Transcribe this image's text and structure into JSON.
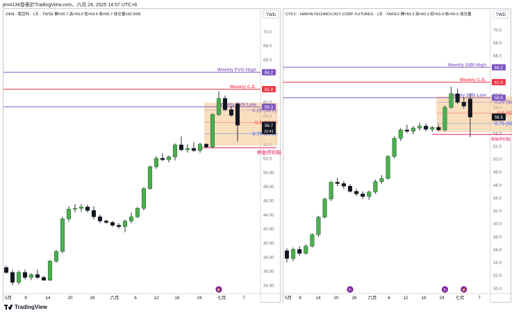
{
  "top_bar": {
    "text": "jen4134發表於TradingView.com，六月 24, 2025 14:57 UTC+8"
  },
  "footer": {
    "brand": "TradingView"
  },
  "charts": [
    {
      "header": "2408 · 南亞科 · 1天 · TWSE  開=59.7  高=59.9  低=54.4  收=56.7  成交量192.56M",
      "currency": "TWD",
      "y_ticks": [
        "70.0",
        "68.0",
        "66.0",
        "64.0",
        "62.0",
        "60.0",
        "58.0",
        "56.0",
        "54.0",
        "52.0",
        "50.00",
        "48.00",
        "46.00",
        "44.00",
        "42.00",
        "40.00",
        "38.00",
        "36.00",
        "34.00"
      ],
      "x_ticks": [
        "5月",
        "9",
        "14",
        "20",
        "26",
        "六月",
        "6",
        "12",
        "18",
        "24",
        "七月",
        "7"
      ],
      "ylim": [
        33.2,
        71.6
      ],
      "lines": [
        {
          "label": "Weekly FVG High",
          "value": 64.2,
          "tag": "64.2",
          "color": "#7e57c2"
        },
        {
          "label": "Weekly C.E.",
          "value": 61.8,
          "tag": "61.8",
          "color": "#f23645"
        },
        {
          "label": "Weekly FVG Low",
          "value": 59.3,
          "tag": "59.3",
          "color": "#7e57c2"
        }
      ],
      "fib": [
        {
          "label": "0.25 (58.8)",
          "value": 58.8,
          "color": "#7e57c2"
        },
        {
          "label": "0.5 (57.1)",
          "value": 57.1,
          "color": "#f23645"
        },
        {
          "label": "0.75 (55.5)",
          "value": 55.5,
          "color": "#2962ff"
        }
      ],
      "stop_label": "移動停利點",
      "stop_value": 53.5,
      "price_tag": "56.7",
      "countdown": "22:41",
      "candles": [
        [
          36.5,
          36.8,
          35.6,
          35.8
        ],
        [
          35.8,
          36.2,
          34.0,
          34.4
        ],
        [
          34.4,
          36.1,
          34.1,
          35.8
        ],
        [
          35.8,
          36.2,
          34.8,
          35.1
        ],
        [
          35.1,
          35.7,
          34.7,
          35.5
        ],
        [
          35.5,
          36.2,
          34.9,
          35.1
        ],
        [
          35.1,
          35.3,
          34.6,
          34.7
        ],
        [
          34.7,
          37.6,
          34.6,
          37.4
        ],
        [
          37.4,
          39.0,
          37.2,
          38.8
        ],
        [
          38.8,
          43.7,
          38.5,
          43.4
        ],
        [
          43.4,
          45.2,
          43.0,
          44.8
        ],
        [
          44.8,
          45.5,
          44.3,
          44.9
        ],
        [
          44.9,
          45.5,
          44.4,
          45.1
        ],
        [
          45.1,
          45.4,
          44.3,
          44.6
        ],
        [
          44.6,
          45.2,
          43.3,
          43.7
        ],
        [
          43.7,
          44.0,
          42.8,
          43.1
        ],
        [
          43.1,
          43.3,
          42.7,
          42.9
        ],
        [
          42.9,
          43.1,
          42.3,
          42.5
        ],
        [
          42.5,
          42.8,
          42.0,
          42.3
        ],
        [
          42.3,
          43.3,
          41.5,
          43.1
        ],
        [
          43.1,
          44.3,
          42.8,
          43.7
        ],
        [
          43.7,
          45.1,
          43.5,
          44.9
        ],
        [
          44.9,
          47.9,
          44.6,
          47.7
        ],
        [
          47.7,
          51.0,
          47.5,
          50.8
        ],
        [
          50.8,
          52.3,
          50.5,
          52.0
        ],
        [
          52.0,
          52.7,
          51.6,
          51.8
        ],
        [
          51.8,
          52.4,
          51.4,
          52.2
        ],
        [
          52.2,
          54.1,
          51.7,
          53.9
        ],
        [
          53.9,
          55.1,
          53.0,
          53.2
        ],
        [
          53.2,
          54.0,
          52.8,
          53.4
        ],
        [
          53.4,
          54.3,
          52.9,
          53.1
        ],
        [
          53.1,
          54.2,
          52.8,
          54.0
        ],
        [
          54.0,
          54.1,
          53.4,
          53.6
        ],
        [
          53.6,
          58.4,
          53.4,
          58.2
        ],
        [
          58.2,
          61.5,
          58.0,
          60.5
        ],
        [
          60.5,
          60.9,
          58.7,
          58.9
        ],
        [
          58.9,
          59.4,
          57.9,
          58.1
        ],
        [
          59.7,
          59.9,
          54.4,
          56.7
        ]
      ],
      "events": [
        {
          "index": 34,
          "glyph": "⚡"
        }
      ]
    },
    {
      "header": "CYF1! · NANYA TECHNOLOGY CORP. FUTURES · 1天 · TAIFEX  開=59.3  高=60.2  低=53.4  收=56.5  成交量",
      "currency": "TWD",
      "y_ticks": [
        "70.0",
        "68.0",
        "66.0",
        "64.0",
        "62.0",
        "60.0",
        "58.0",
        "56.0",
        "54.0",
        "52.0",
        "50.0",
        "48.0",
        "46.0",
        "44.0",
        "42.0",
        "40.0",
        "38.0",
        "36.0",
        "34.0",
        "32.0",
        "30.0"
      ],
      "x_ticks": [
        "5月",
        "9",
        "14",
        "20",
        "26",
        "六月",
        "6",
        "12",
        "18",
        "24",
        "七月",
        "7"
      ],
      "ylim": [
        29.6,
        71.5
      ],
      "lines": [
        {
          "label": "Weekly SIBI High",
          "value": 64.2,
          "tag": "64.2",
          "color": "#7e57c2"
        },
        {
          "label": "Weekly C.E.",
          "value": 61.9,
          "tag": "61.9",
          "color": "#f23645"
        },
        {
          "label": "Weekly SIBI Low",
          "value": 59.5,
          "tag": "59.5",
          "color": "#7e57c2"
        }
      ],
      "fib": [
        {
          "label": "0.25 (58.8)",
          "value": 58.8,
          "color": "#7e57c2"
        },
        {
          "label": "0.5 (57.1)",
          "value": 57.1,
          "color": "#f23645"
        },
        {
          "label": "0.75 (55.5)",
          "value": 55.5,
          "color": "#2962ff"
        }
      ],
      "stop_label": "移動停利點",
      "stop_value": 53.8,
      "price_tag": "56.5",
      "countdown": "",
      "candles": [
        [
          35.8,
          36.2,
          34.0,
          34.6
        ],
        [
          34.6,
          36.3,
          34.2,
          36.0
        ],
        [
          36.0,
          36.5,
          35.0,
          35.4
        ],
        [
          35.4,
          36.8,
          35.2,
          36.5
        ],
        [
          36.5,
          38.5,
          36.3,
          38.3
        ],
        [
          38.3,
          41.2,
          38.0,
          41.0
        ],
        [
          41.0,
          44.0,
          40.8,
          43.8
        ],
        [
          43.8,
          46.6,
          43.5,
          46.4
        ],
        [
          46.4,
          47.1,
          45.8,
          46.2
        ],
        [
          46.2,
          46.6,
          45.4,
          45.8
        ],
        [
          45.8,
          46.1,
          44.8,
          45.0
        ],
        [
          45.0,
          45.4,
          44.3,
          44.6
        ],
        [
          44.6,
          45.0,
          43.8,
          44.2
        ],
        [
          44.2,
          45.1,
          43.7,
          44.9
        ],
        [
          44.9,
          46.8,
          44.6,
          46.5
        ],
        [
          46.5,
          47.5,
          46.2,
          47.0
        ],
        [
          47.0,
          50.6,
          46.8,
          50.4
        ],
        [
          50.4,
          53.5,
          50.1,
          53.2
        ],
        [
          53.2,
          54.8,
          52.8,
          54.5
        ],
        [
          54.5,
          55.3,
          54.0,
          54.3
        ],
        [
          54.3,
          55.1,
          53.8,
          54.8
        ],
        [
          54.8,
          55.6,
          54.4,
          55.1
        ],
        [
          55.1,
          55.5,
          54.3,
          54.6
        ],
        [
          54.6,
          55.1,
          54.2,
          54.9
        ],
        [
          54.9,
          55.3,
          54.3,
          54.5
        ],
        [
          54.5,
          58.3,
          54.3,
          58.0
        ],
        [
          58.0,
          61.2,
          57.8,
          60.1
        ],
        [
          60.1,
          60.9,
          58.5,
          58.8
        ],
        [
          58.8,
          59.5,
          57.8,
          58.2
        ],
        [
          59.3,
          60.2,
          53.4,
          56.5
        ]
      ],
      "events": [
        {
          "index": 10,
          "glyph": "↻"
        },
        {
          "index": 25,
          "glyph": "↻"
        },
        {
          "index": 28,
          "glyph": "⚡"
        }
      ]
    }
  ]
}
